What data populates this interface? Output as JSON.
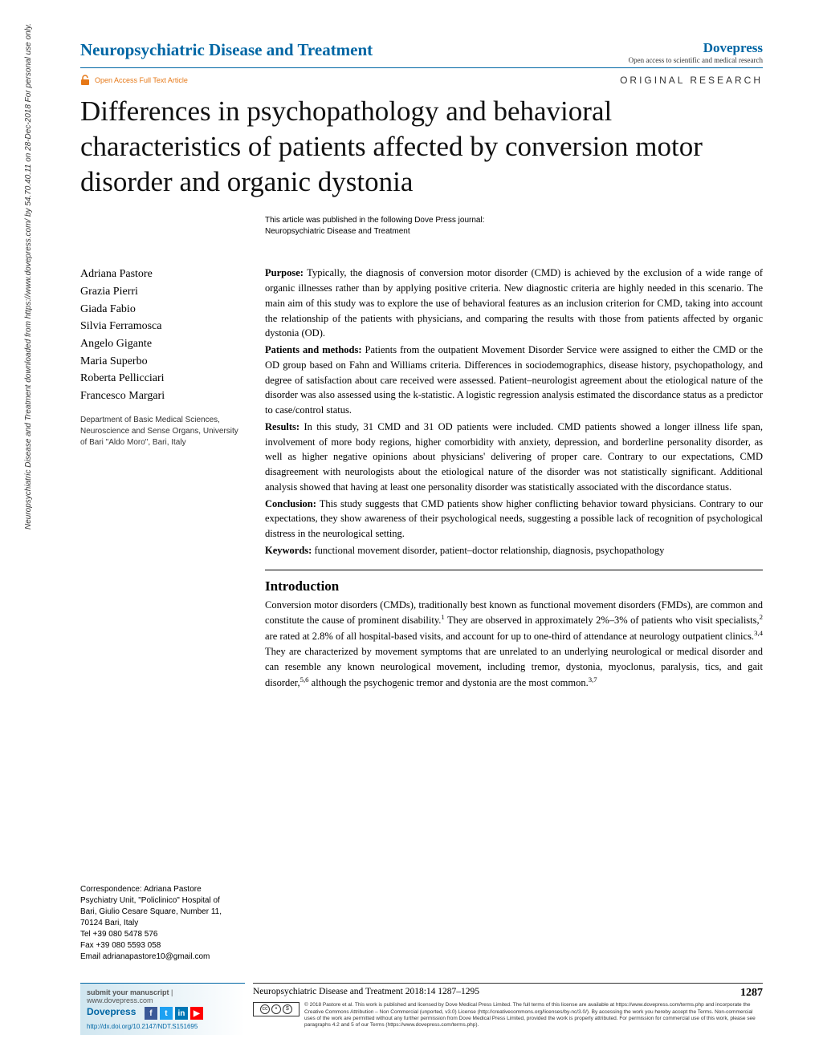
{
  "sidebar_note": "Neuropsychiatric Disease and Treatment downloaded from https://www.dovepress.com/ by 54.70.40.11 on 28-Dec-2018  For personal use only.",
  "header": {
    "journal": "Neuropsychiatric Disease and Treatment",
    "brand": "Dovepress",
    "tagline": "Open access to scientific and medical research",
    "access_label": "Open Access Full Text Article",
    "article_type": "ORIGINAL RESEARCH"
  },
  "title": "Differences in psychopathology and behavioral characteristics of patients affected by conversion motor disorder and organic dystonia",
  "journal_note_line1": "This article was published in the following Dove Press journal:",
  "journal_note_line2": "Neuropsychiatric Disease and Treatment",
  "authors": [
    "Adriana Pastore",
    "Grazia Pierri",
    "Giada Fabio",
    "Silvia Ferramosca",
    "Angelo Gigante",
    "Maria Superbo",
    "Roberta Pellicciari",
    "Francesco Margari"
  ],
  "affiliation": "Department of Basic Medical Sciences, Neuroscience and Sense Organs, University of Bari \"Aldo Moro\", Bari, Italy",
  "abstract": {
    "purpose_label": "Purpose:",
    "purpose": " Typically, the diagnosis of conversion motor disorder (CMD) is achieved by the exclusion of a wide range of organic illnesses rather than by applying positive criteria. New diagnostic criteria are highly needed in this scenario. The main aim of this study was to explore the use of behavioral features as an inclusion criterion for CMD, taking into account the relationship of the patients with physicians, and comparing the results with those from patients affected by organic dystonia (OD).",
    "methods_label": "Patients and methods:",
    "methods": " Patients from the outpatient Movement Disorder Service were assigned to either the CMD or the OD group based on Fahn and Williams criteria. Differences in sociodemographics, disease history, psychopathology, and degree of satisfaction about care received were assessed. Patient–neurologist agreement about the etiological nature of the disorder was also assessed using the k-statistic. A logistic regression analysis estimated the discordance status as a predictor to case/control status.",
    "results_label": "Results:",
    "results": " In this study, 31 CMD and 31 OD patients were included. CMD patients showed a longer illness life span, involvement of more body regions, higher comorbidity with anxiety, depression, and borderline personality disorder, as well as higher negative opinions about physicians' delivering of proper care. Contrary to our expectations, CMD disagreement with neurologists about the etiological nature of the disorder was not statistically significant. Additional analysis showed that having at least one personality disorder was statistically associated with the discordance status.",
    "conclusion_label": "Conclusion:",
    "conclusion": " This study suggests that CMD patients show higher conflicting behavior toward physicians. Contrary to our expectations, they show awareness of their psychological needs, suggesting a possible lack of recognition of psychological distress in the neurological setting.",
    "keywords_label": "Keywords:",
    "keywords": " functional movement disorder, patient–doctor relationship, diagnosis, psychopathology"
  },
  "intro": {
    "heading": "Introduction",
    "body_html": "Conversion motor disorders (CMDs), traditionally best known as functional movement disorders (FMDs), are common and constitute the cause of prominent disability.<sup>1</sup> They are observed in approximately 2%–3% of patients who visit specialists,<sup>2</sup> are rated at 2.8% of all hospital-based visits, and account for up to one-third of attendance at neurology outpatient clinics.<sup>3,4</sup> They are characterized by movement symptoms that are unrelated to an underlying neurological or medical disorder and can resemble any known neurological movement, including tremor, dystonia, myoclonus, paralysis, tics, and gait disorder,<sup>5,6</sup> although the psychogenic tremor and dystonia are the most common.<sup>3,7</sup>"
  },
  "correspondence": {
    "label": "Correspondence: Adriana Pastore",
    "lines": [
      "Psychiatry Unit, \"Policlinico\" Hospital of",
      "Bari, Giulio Cesare Square, Number 11,",
      "70124 Bari, Italy",
      "Tel +39 080 5478 576",
      "Fax +39 080 5593 058",
      "Email adrianapastore10@gmail.com"
    ]
  },
  "footer": {
    "submit_label": "submit your manuscript",
    "submit_site": " | www.dovepress.com",
    "brand": "Dovepress",
    "doi": "http://dx.doi.org/10.2147/NDT.S151695",
    "citation": "Neuropsychiatric Disease and Treatment 2018:14 1287–1295",
    "page_number": "1287",
    "license": "© 2018 Pastore et al. This work is published and licensed by Dove Medical Press Limited. The full terms of this license are available at https://www.dovepress.com/terms.php and incorporate the Creative Commons Attribution – Non Commercial (unported, v3.0) License (http://creativecommons.org/licenses/by-nc/3.0/). By accessing the work you hereby accept the Terms. Non-commercial uses of the work are permitted without any further permission from Dove Medical Press Limited, provided the work is properly attributed. For permission for commercial use of this work, please see paragraphs 4.2 and 5 of our Terms (https://www.dovepress.com/terms.php).",
    "social_colors": {
      "facebook": "#3b5998",
      "twitter": "#1da1f2",
      "linkedin": "#0077b5",
      "youtube": "#ff0000"
    }
  },
  "colors": {
    "brand_blue": "#0066a4",
    "access_orange": "#e67817"
  }
}
